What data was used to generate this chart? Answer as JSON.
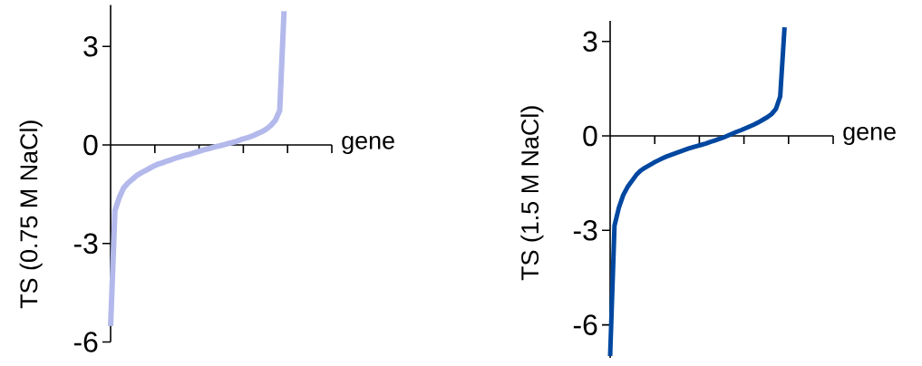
{
  "chart_data": [
    {
      "type": "line",
      "xlabel": "gene",
      "ylabel": "TS (0.75 M NaCl)",
      "color": "#b3b9eb",
      "line_style": "solid",
      "marker": "none",
      "tick_labels": "y",
      "categories": [
        null,
        null,
        null,
        null,
        null,
        null,
        null,
        null,
        null,
        null,
        null,
        null,
        null,
        null,
        null,
        null,
        null,
        null,
        null,
        null,
        null,
        null,
        null,
        null,
        null,
        null,
        null,
        null,
        null,
        null,
        null,
        null,
        null,
        null,
        null,
        null,
        null,
        null,
        null,
        null,
        null
      ],
      "values": [
        -5.51,
        -2.0,
        -1.6,
        -1.31,
        -1.16,
        -1.05,
        -0.93,
        -0.85,
        -0.78,
        -0.71,
        -0.64,
        -0.58,
        -0.54,
        -0.49,
        -0.45,
        -0.4,
        -0.36,
        -0.32,
        -0.29,
        -0.25,
        -0.21,
        -0.17,
        -0.13,
        -0.1,
        -0.06,
        -0.03,
        0.0,
        0.04,
        0.07,
        0.11,
        0.16,
        0.2,
        0.24,
        0.29,
        0.35,
        0.41,
        0.49,
        0.6,
        0.75,
        1.05,
        4.07
      ],
      "ylim": [
        -6,
        4.26
      ],
      "yticks": [
        {
          "value": -6,
          "label": "-6"
        },
        {
          "value": -3,
          "label": "-3"
        },
        {
          "value": 0,
          "label": "0"
        },
        {
          "value": 3,
          "label": "3"
        }
      ]
    },
    {
      "type": "line",
      "xlabel": "gene",
      "ylabel": "TS (1.5 M NaCl)",
      "color": "#0047a0",
      "line_style": "solid",
      "marker": "none",
      "tick_labels": "y",
      "categories": [
        null,
        null,
        null,
        null,
        null,
        null,
        null,
        null,
        null,
        null,
        null,
        null,
        null,
        null,
        null,
        null,
        null,
        null,
        null,
        null,
        null,
        null,
        null,
        null,
        null,
        null,
        null,
        null,
        null,
        null,
        null,
        null,
        null,
        null,
        null,
        null,
        null,
        null,
        null,
        null,
        null
      ],
      "values": [
        -6.99,
        -2.85,
        -2.28,
        -1.88,
        -1.62,
        -1.43,
        -1.24,
        -1.1,
        -1.01,
        -0.93,
        -0.85,
        -0.78,
        -0.71,
        -0.65,
        -0.6,
        -0.55,
        -0.5,
        -0.45,
        -0.4,
        -0.36,
        -0.32,
        -0.28,
        -0.24,
        -0.19,
        -0.15,
        -0.1,
        -0.05,
        0.01,
        0.07,
        0.13,
        0.18,
        0.24,
        0.3,
        0.36,
        0.43,
        0.51,
        0.59,
        0.69,
        0.85,
        1.25,
        3.45
      ],
      "ylim": [
        -7.05,
        3.65
      ],
      "yticks": [
        {
          "value": -6,
          "label": "-6"
        },
        {
          "value": -3,
          "label": "-3"
        },
        {
          "value": 0,
          "label": "0"
        },
        {
          "value": 3,
          "label": "3"
        }
      ]
    }
  ]
}
